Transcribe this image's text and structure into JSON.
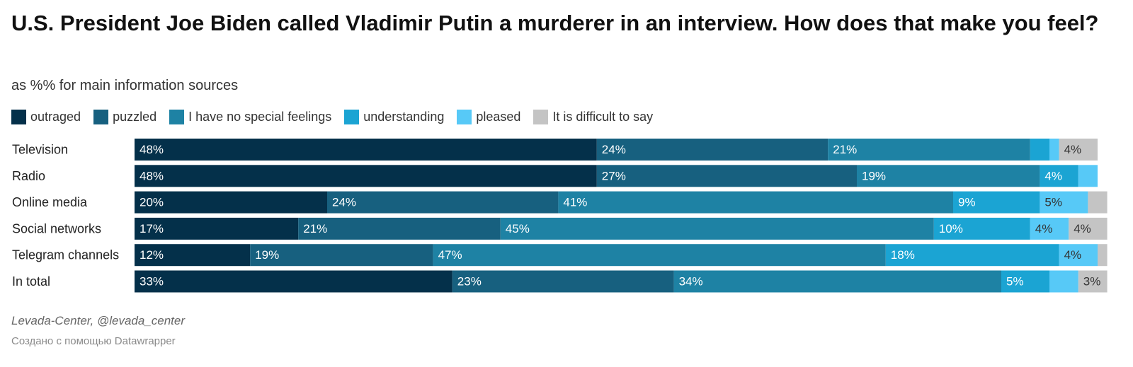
{
  "title": "U.S. President Joe Biden called Vladimir Putin a murderer in an interview. How does that make you feel?",
  "subtitle": "as %% for main information sources",
  "source": "Levada-Center, @levada_center",
  "credit": "Создано с помощью Datawrapper",
  "chart_data": {
    "type": "bar",
    "orientation": "horizontal",
    "stacked": true,
    "unit": "%",
    "xlim": [
      0,
      100
    ],
    "legend_position": "top-left",
    "categories": [
      "Television",
      "Radio",
      "Online media",
      "Social networks",
      "Telegram channels",
      "In total"
    ],
    "series": [
      {
        "name": "outraged",
        "color": "#04304a",
        "values": [
          48,
          48,
          20,
          17,
          12,
          33
        ]
      },
      {
        "name": "puzzled",
        "color": "#17607f",
        "values": [
          24,
          27,
          24,
          21,
          19,
          23
        ]
      },
      {
        "name": "I have no special feelings",
        "color": "#1e82a4",
        "values": [
          21,
          19,
          41,
          45,
          47,
          34
        ]
      },
      {
        "name": "understanding",
        "color": "#1ba4d3",
        "values": [
          2,
          4,
          9,
          10,
          18,
          5
        ]
      },
      {
        "name": "pleased",
        "color": "#57c9f7",
        "values": [
          1,
          2,
          5,
          4,
          4,
          3
        ]
      },
      {
        "name": "It is difficult to say",
        "color": "#c4c4c4",
        "values": [
          4,
          0,
          2,
          4,
          1,
          3
        ]
      }
    ],
    "data_labels": [
      [
        "48%",
        "24%",
        "21%",
        "",
        "",
        "4%"
      ],
      [
        "48%",
        "27%",
        "19%",
        "4%",
        "",
        ""
      ],
      [
        "20%",
        "24%",
        "41%",
        "9%",
        "5%",
        ""
      ],
      [
        "17%",
        "21%",
        "45%",
        "10%",
        "4%",
        "4%"
      ],
      [
        "12%",
        "19%",
        "47%",
        "18%",
        "4%",
        ""
      ],
      [
        "33%",
        "23%",
        "34%",
        "5%",
        "",
        "3%"
      ]
    ]
  }
}
